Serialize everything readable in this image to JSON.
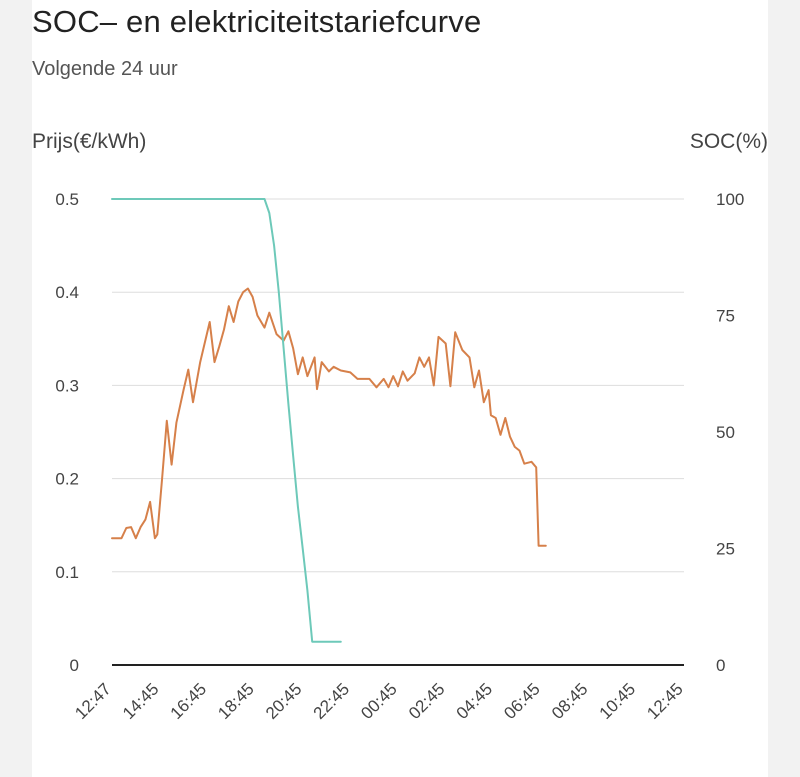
{
  "title": "SOC– en elektriciteitstariefcurve",
  "subtitle": "Volgende 24 uur",
  "chart_data": {
    "type": "line",
    "left_axis": {
      "label": "Prijs(€/kWh)",
      "ticks": [
        "0.5",
        "0.4",
        "0.3",
        "0.2",
        "0.1",
        "0"
      ],
      "range": [
        0,
        0.5
      ]
    },
    "right_axis": {
      "label": "SOC(%)",
      "ticks": [
        "100",
        "75",
        "50",
        "25",
        "0"
      ],
      "range": [
        0,
        100
      ]
    },
    "x_range": [
      0,
      24
    ],
    "x_ticks": [
      {
        "label": "12:47",
        "x": 0
      },
      {
        "label": "14:45",
        "x": 2
      },
      {
        "label": "16:45",
        "x": 4
      },
      {
        "label": "18:45",
        "x": 6
      },
      {
        "label": "20:45",
        "x": 8
      },
      {
        "label": "22:45",
        "x": 10
      },
      {
        "label": "00:45",
        "x": 12
      },
      {
        "label": "02:45",
        "x": 14
      },
      {
        "label": "04:45",
        "x": 16
      },
      {
        "label": "06:45",
        "x": 18
      },
      {
        "label": "08:45",
        "x": 20
      },
      {
        "label": "10:45",
        "x": 22
      },
      {
        "label": "12:45",
        "x": 24
      }
    ],
    "grid": true,
    "series": [
      {
        "axis": "left",
        "color": "#d6804a",
        "points": [
          [
            0,
            0.136
          ],
          [
            0.4,
            0.136
          ],
          [
            0.6,
            0.147
          ],
          [
            0.8,
            0.148
          ],
          [
            1.0,
            0.136
          ],
          [
            1.2,
            0.148
          ],
          [
            1.4,
            0.156
          ],
          [
            1.6,
            0.175
          ],
          [
            1.8,
            0.136
          ],
          [
            1.9,
            0.14
          ],
          [
            2.1,
            0.2
          ],
          [
            2.3,
            0.262
          ],
          [
            2.5,
            0.215
          ],
          [
            2.7,
            0.26
          ],
          [
            3.0,
            0.295
          ],
          [
            3.2,
            0.317
          ],
          [
            3.4,
            0.282
          ],
          [
            3.7,
            0.325
          ],
          [
            4.1,
            0.368
          ],
          [
            4.3,
            0.325
          ],
          [
            4.5,
            0.342
          ],
          [
            4.7,
            0.36
          ],
          [
            4.9,
            0.385
          ],
          [
            5.1,
            0.368
          ],
          [
            5.3,
            0.39
          ],
          [
            5.5,
            0.4
          ],
          [
            5.7,
            0.404
          ],
          [
            5.9,
            0.395
          ],
          [
            6.1,
            0.375
          ],
          [
            6.4,
            0.362
          ],
          [
            6.6,
            0.378
          ],
          [
            6.9,
            0.355
          ],
          [
            7.2,
            0.348
          ],
          [
            7.4,
            0.358
          ],
          [
            7.6,
            0.34
          ],
          [
            7.8,
            0.312
          ],
          [
            8.0,
            0.33
          ],
          [
            8.2,
            0.31
          ],
          [
            8.5,
            0.33
          ],
          [
            8.6,
            0.296
          ],
          [
            8.8,
            0.325
          ],
          [
            9.1,
            0.315
          ],
          [
            9.3,
            0.32
          ],
          [
            9.6,
            0.316
          ],
          [
            10.0,
            0.314
          ],
          [
            10.3,
            0.307
          ],
          [
            10.8,
            0.307
          ],
          [
            11.1,
            0.298
          ],
          [
            11.4,
            0.307
          ],
          [
            11.6,
            0.298
          ],
          [
            11.8,
            0.31
          ],
          [
            12.0,
            0.299
          ],
          [
            12.2,
            0.315
          ],
          [
            12.4,
            0.305
          ],
          [
            12.7,
            0.313
          ],
          [
            12.9,
            0.33
          ],
          [
            13.1,
            0.32
          ],
          [
            13.3,
            0.33
          ],
          [
            13.5,
            0.3
          ],
          [
            13.7,
            0.352
          ],
          [
            14.0,
            0.345
          ],
          [
            14.2,
            0.299
          ],
          [
            14.4,
            0.357
          ],
          [
            14.7,
            0.338
          ],
          [
            15.0,
            0.33
          ],
          [
            15.2,
            0.298
          ],
          [
            15.4,
            0.316
          ],
          [
            15.6,
            0.282
          ],
          [
            15.8,
            0.295
          ],
          [
            15.9,
            0.268
          ],
          [
            16.1,
            0.265
          ],
          [
            16.3,
            0.247
          ],
          [
            16.5,
            0.265
          ],
          [
            16.7,
            0.245
          ],
          [
            16.9,
            0.234
          ],
          [
            17.1,
            0.23
          ],
          [
            17.3,
            0.216
          ],
          [
            17.6,
            0.218
          ],
          [
            17.8,
            0.212
          ],
          [
            17.9,
            0.128
          ],
          [
            18.2,
            0.128
          ]
        ]
      },
      {
        "axis": "right",
        "color": "#6dc9b9",
        "points": [
          [
            0,
            100
          ],
          [
            6.4,
            100
          ],
          [
            6.6,
            97
          ],
          [
            6.8,
            90
          ],
          [
            7.0,
            80
          ],
          [
            7.2,
            68
          ],
          [
            7.4,
            56
          ],
          [
            7.6,
            45
          ],
          [
            7.8,
            34
          ],
          [
            8.0,
            25
          ],
          [
            8.2,
            16
          ],
          [
            8.4,
            5
          ],
          [
            9.6,
            5
          ]
        ]
      }
    ]
  }
}
